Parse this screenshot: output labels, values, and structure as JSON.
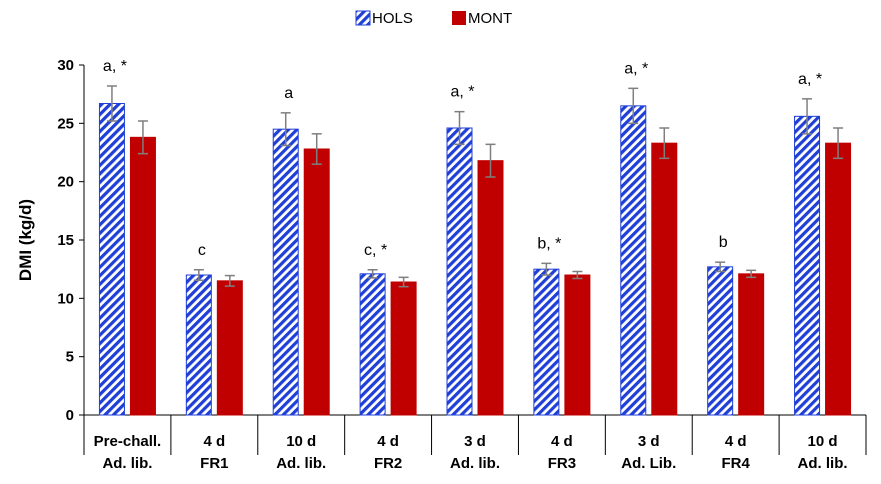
{
  "chart_data": {
    "type": "bar",
    "categories": [
      [
        "Pre-chall.",
        "Ad. lib."
      ],
      [
        "4 d",
        "FR1"
      ],
      [
        "10 d",
        "Ad. lib."
      ],
      [
        "4 d",
        "FR2"
      ],
      [
        "3 d",
        "Ad. lib."
      ],
      [
        "4 d",
        "FR3"
      ],
      [
        "3 d",
        "Ad. Lib."
      ],
      [
        "4 d",
        "FR4"
      ],
      [
        "10 d",
        "Ad. lib."
      ]
    ],
    "series": [
      {
        "name": "HOLS",
        "color": "#1f3fd6",
        "pattern": "diagonal-hatch",
        "values": [
          26.7,
          12.0,
          24.5,
          12.1,
          24.6,
          12.5,
          26.5,
          12.7,
          25.6
        ],
        "error": [
          1.5,
          0.45,
          1.4,
          0.35,
          1.4,
          0.5,
          1.5,
          0.4,
          1.5
        ]
      },
      {
        "name": "MONT",
        "color": "#c00000",
        "pattern": "solid",
        "values": [
          23.8,
          11.5,
          22.8,
          11.4,
          21.8,
          12.0,
          23.3,
          12.1,
          23.3
        ],
        "error": [
          1.4,
          0.45,
          1.3,
          0.4,
          1.4,
          0.3,
          1.3,
          0.3,
          1.3
        ]
      }
    ],
    "annotations": [
      "a, *",
      "c",
      "a",
      "c, *",
      "a, *",
      "b, *",
      "a, *",
      "b",
      "a, *"
    ],
    "ylabel": "DMI (kg/d)",
    "xlabel": "",
    "ylim": [
      0,
      30
    ],
    "yticks": [
      0,
      5,
      10,
      15,
      20,
      25,
      30
    ],
    "grid": false,
    "legend": "top-center"
  }
}
